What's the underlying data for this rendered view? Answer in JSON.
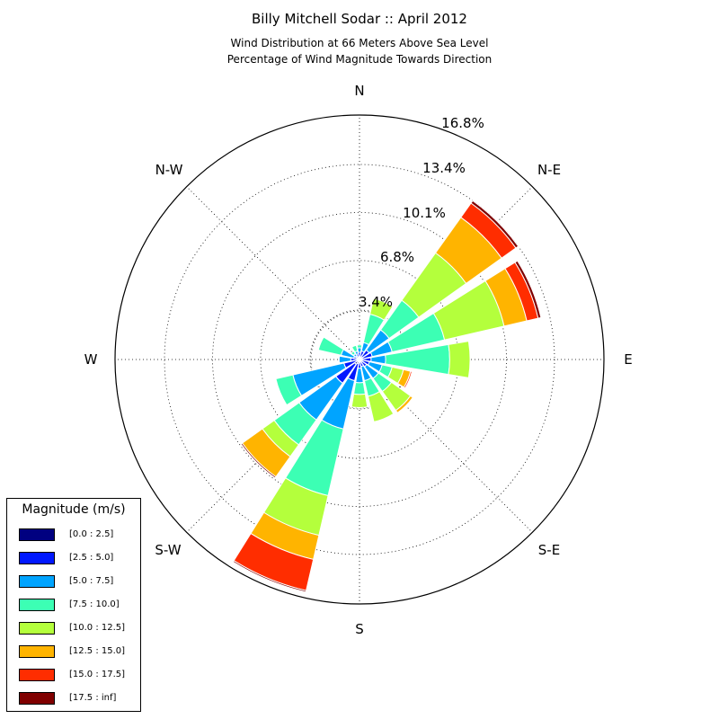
{
  "title": "Billy Mitchell Sodar :: April 2012",
  "subtitle_line1": "Wind Distribution at 66 Meters Above Sea Level",
  "subtitle_line2": "Percentage of Wind Magnitude Towards Direction",
  "legend": {
    "title": "Magnitude (m/s)",
    "items": [
      {
        "label": "[0.0 : 2.5]",
        "color": "#000080"
      },
      {
        "label": "[2.5 : 5.0]",
        "color": "#0018ff"
      },
      {
        "label": "[5.0 : 7.5]",
        "color": "#00a4ff"
      },
      {
        "label": "[7.5 : 10.0]",
        "color": "#3cffb4"
      },
      {
        "label": "[10.0 : 12.5]",
        "color": "#b4ff3c"
      },
      {
        "label": "[12.5 : 15.0]",
        "color": "#ffb400"
      },
      {
        "label": "[15.0 : 17.5]",
        "color": "#ff2d00"
      },
      {
        "label": "[17.5 : inf]",
        "color": "#800000"
      }
    ]
  },
  "chart_data": {
    "type": "windrose",
    "direction_labels": [
      "N",
      "N-E",
      "E",
      "S-E",
      "S",
      "S-W",
      "W",
      "N-W"
    ],
    "radial_tick_labels": [
      "3.4%",
      "6.8%",
      "10.1%",
      "13.4%",
      "16.8%"
    ],
    "radial_ticks": [
      3.4,
      6.8,
      10.1,
      13.4,
      16.8
    ],
    "radial_max": 16.8,
    "grid": true,
    "legend_position": "bottom-left",
    "direction_bins_deg": [
      0,
      22.5,
      45,
      67.5,
      90,
      112.5,
      135,
      157.5,
      180,
      202.5,
      225,
      247.5,
      270,
      292.5,
      315,
      337.5
    ],
    "speed_bins": [
      "[0.0 : 2.5]",
      "[2.5 : 5.0]",
      "[5.0 : 7.5]",
      "[7.5 : 10.0]",
      "[10.0 : 12.5]",
      "[12.5 : 15.0]",
      "[15.0 : 17.5]",
      "[17.5 : inf]"
    ],
    "cumulative_percent": [
      [
        0.2,
        0.5,
        0.8,
        1.0,
        1.0,
        1.0,
        1.0,
        1.0
      ],
      [
        0.1,
        0.6,
        1.2,
        3.2,
        4.3,
        4.3,
        4.3,
        4.3
      ],
      [
        0.2,
        0.8,
        2.5,
        5.0,
        9.0,
        12.0,
        13.2,
        13.4
      ],
      [
        0.2,
        0.9,
        2.3,
        6.0,
        10.2,
        11.8,
        12.6,
        12.8
      ],
      [
        0.1,
        0.8,
        1.8,
        6.2,
        7.6,
        7.6,
        7.6,
        7.6
      ],
      [
        0.1,
        0.7,
        1.6,
        2.3,
        3.1,
        3.6,
        3.7,
        3.7
      ],
      [
        0.1,
        0.6,
        1.6,
        2.7,
        4.3,
        4.5,
        4.5,
        4.5
      ],
      [
        0.1,
        0.5,
        1.5,
        2.6,
        4.4,
        4.4,
        4.4,
        4.4
      ],
      [
        0.1,
        0.6,
        1.6,
        2.4,
        3.3,
        3.3,
        3.3,
        3.3
      ],
      [
        0.3,
        1.5,
        4.9,
        9.6,
        12.4,
        14.1,
        16.3,
        16.4
      ],
      [
        0.4,
        2.0,
        5.1,
        7.2,
        8.2,
        9.9,
        9.9,
        10.0
      ],
      [
        0.2,
        1.1,
        4.7,
        5.9,
        5.9,
        5.9,
        5.9,
        5.9
      ],
      [
        0.1,
        0.6,
        1.4,
        1.4,
        1.4,
        1.4,
        1.4,
        1.4
      ],
      [
        0.1,
        0.4,
        1.3,
        2.9,
        2.9,
        2.9,
        2.9,
        2.9
      ],
      [
        0.1,
        0.3,
        0.5,
        0.7,
        0.7,
        0.7,
        0.7,
        0.7
      ],
      [
        0.1,
        0.4,
        0.6,
        1.0,
        1.0,
        1.0,
        1.0,
        1.0
      ]
    ]
  }
}
